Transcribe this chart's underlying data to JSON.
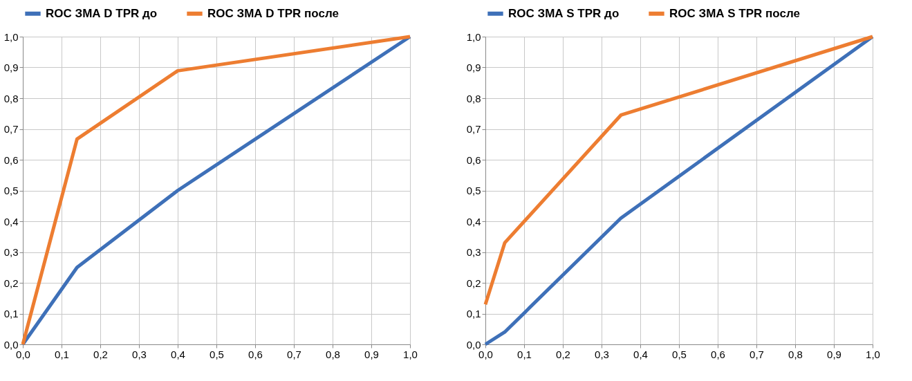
{
  "chart_data": [
    {
      "type": "line",
      "xlim": [
        0,
        1
      ],
      "ylim": [
        0,
        1
      ],
      "xticks": [
        {
          "value": 0,
          "label": "0,0"
        },
        {
          "value": 0.1,
          "label": "0,1"
        },
        {
          "value": 0.2,
          "label": "0,2"
        },
        {
          "value": 0.3,
          "label": "0,3"
        },
        {
          "value": 0.4,
          "label": "0,4"
        },
        {
          "value": 0.5,
          "label": "0,5"
        },
        {
          "value": 0.6,
          "label": "0,6"
        },
        {
          "value": 0.7,
          "label": "0,7"
        },
        {
          "value": 0.8,
          "label": "0,8"
        },
        {
          "value": 0.9,
          "label": "0,9"
        },
        {
          "value": 1,
          "label": "1,0"
        }
      ],
      "yticks": [
        {
          "value": 0,
          "label": "0,0"
        },
        {
          "value": 0.1,
          "label": "0,1"
        },
        {
          "value": 0.2,
          "label": "0,2"
        },
        {
          "value": 0.3,
          "label": "0,3"
        },
        {
          "value": 0.4,
          "label": "0,4"
        },
        {
          "value": 0.5,
          "label": "0,5"
        },
        {
          "value": 0.6,
          "label": "0,6"
        },
        {
          "value": 0.7,
          "label": "0,7"
        },
        {
          "value": 0.8,
          "label": "0,8"
        },
        {
          "value": 0.9,
          "label": "0,9"
        },
        {
          "value": 1,
          "label": "1,0"
        }
      ],
      "grid": true,
      "legend": "top",
      "marker": "none",
      "line_style": "solid",
      "series": [
        {
          "name": "ROC ЗМА D TPR до",
          "color": "#3e70b8",
          "x": [
            0,
            0.14,
            0.4,
            1
          ],
          "values": [
            0,
            0.25,
            0.5,
            1
          ]
        },
        {
          "name": "ROC ЗМА D TPR после",
          "color": "#ed7d31",
          "x": [
            0,
            0.14,
            0.4,
            1
          ],
          "values": [
            0,
            0.667,
            0.889,
            1
          ]
        }
      ]
    },
    {
      "type": "line",
      "xlim": [
        0,
        1
      ],
      "ylim": [
        0,
        1
      ],
      "xticks": [
        {
          "value": 0,
          "label": "0,0"
        },
        {
          "value": 0.1,
          "label": "0,1"
        },
        {
          "value": 0.2,
          "label": "0,2"
        },
        {
          "value": 0.3,
          "label": "0,3"
        },
        {
          "value": 0.4,
          "label": "0,4"
        },
        {
          "value": 0.5,
          "label": "0,5"
        },
        {
          "value": 0.6,
          "label": "0,6"
        },
        {
          "value": 0.7,
          "label": "0,7"
        },
        {
          "value": 0.8,
          "label": "0,8"
        },
        {
          "value": 0.9,
          "label": "0,9"
        },
        {
          "value": 1,
          "label": "1,0"
        }
      ],
      "yticks": [
        {
          "value": 0,
          "label": "0,0"
        },
        {
          "value": 0.1,
          "label": "0,1"
        },
        {
          "value": 0.2,
          "label": "0,2"
        },
        {
          "value": 0.3,
          "label": "0,3"
        },
        {
          "value": 0.4,
          "label": "0,4"
        },
        {
          "value": 0.5,
          "label": "0,5"
        },
        {
          "value": 0.6,
          "label": "0,6"
        },
        {
          "value": 0.7,
          "label": "0,7"
        },
        {
          "value": 0.8,
          "label": "0,8"
        },
        {
          "value": 0.9,
          "label": "0,9"
        },
        {
          "value": 1,
          "label": "1,0"
        }
      ],
      "grid": true,
      "legend": "top",
      "marker": "none",
      "line_style": "solid",
      "series": [
        {
          "name": "ROC ЗМА S TPR до",
          "color": "#3e70b8",
          "x": [
            0,
            0.05,
            0.35,
            1
          ],
          "values": [
            0,
            0.04,
            0.41,
            1
          ]
        },
        {
          "name": "ROC ЗМА S TPR после",
          "color": "#ed7d31",
          "x": [
            0,
            0.05,
            0.35,
            1
          ],
          "values": [
            0.13,
            0.33,
            0.745,
            1
          ]
        }
      ]
    }
  ]
}
